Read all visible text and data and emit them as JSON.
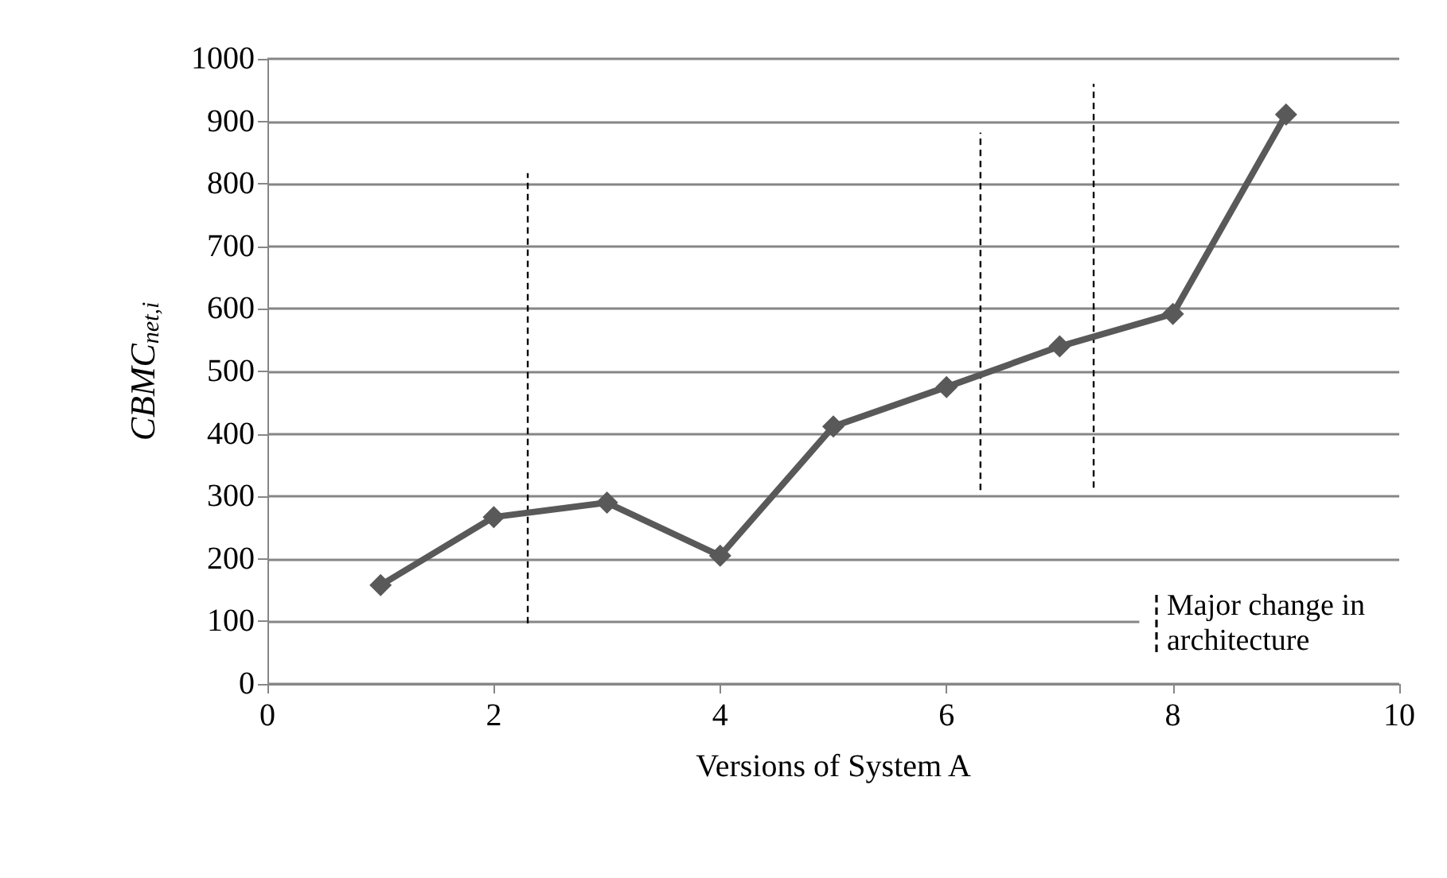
{
  "chart_data": {
    "type": "line",
    "xlabel": "Versions of System A",
    "ylabel": "CBMC$_{net,i}$",
    "xlim": [
      0,
      10
    ],
    "xticks": [
      0,
      2,
      4,
      6,
      8,
      10
    ],
    "ylim": [
      0,
      1000
    ],
    "yticks": [
      0,
      100,
      200,
      300,
      400,
      500,
      600,
      700,
      800,
      900,
      1000
    ],
    "grid": "y",
    "legend": "bottom right",
    "marker": "diamond",
    "line_style": "solid",
    "x": [
      1,
      2,
      3,
      4,
      5,
      6,
      7,
      8,
      9
    ],
    "series": [
      {
        "color": "#595959",
        "values": [
          158,
          267,
          290,
          205,
          412,
          475,
          540,
          592,
          911
        ]
      },
      {
        "name": "Major change in architecture",
        "color": "#000000",
        "line_style": "dashed",
        "marker": "none",
        "x": [
          2.3,
          2.3,
          null,
          6.3,
          6.3,
          null,
          7.3,
          7.3
        ],
        "values": [
          97,
          817,
          null,
          310,
          882,
          null,
          314,
          960
        ]
      }
    ]
  }
}
